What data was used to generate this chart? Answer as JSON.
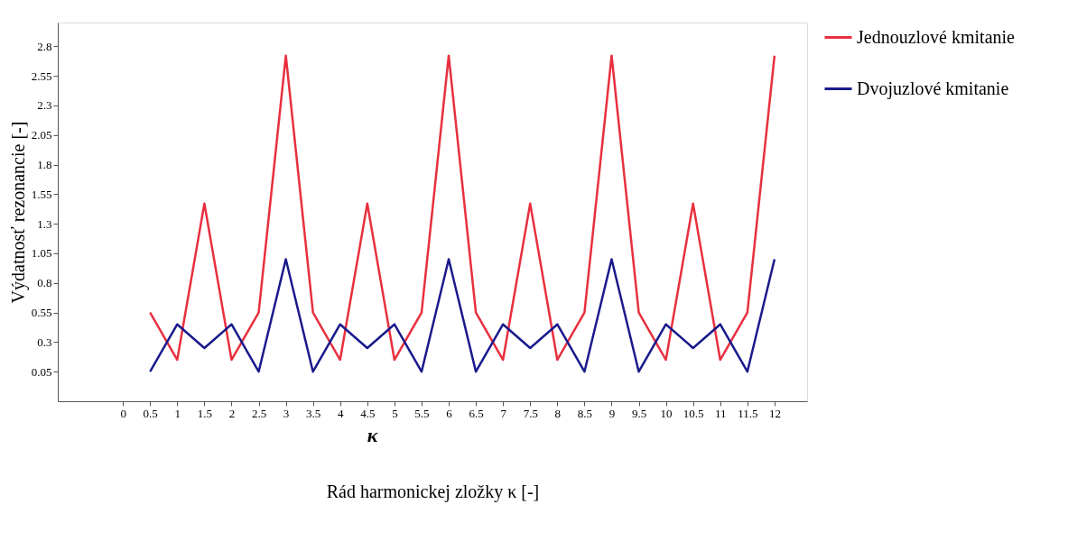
{
  "chart_data": {
    "type": "line",
    "xlabel": "Rád harmonickej zložky κ [-]",
    "ylabel": "Výdatnosť rezonancie [-]",
    "annotations": [
      "κ"
    ],
    "x": [
      0.5,
      1,
      1.5,
      2,
      2.5,
      3,
      3.5,
      4,
      4.5,
      5,
      5.5,
      6,
      6.5,
      7,
      7.5,
      8,
      8.5,
      9,
      9.5,
      10,
      10.5,
      11,
      11.5,
      12
    ],
    "series": [
      {
        "name": "Jednouzlové kmitanie",
        "color": "#e8303f",
        "values": [
          0.55,
          0.15,
          1.47,
          0.15,
          0.55,
          2.72,
          0.55,
          0.15,
          1.47,
          0.15,
          0.55,
          2.72,
          0.55,
          0.15,
          1.47,
          0.15,
          0.55,
          2.72,
          0.55,
          0.15,
          1.47,
          0.15,
          0.55,
          2.72
        ]
      },
      {
        "name": "Dvojuzlové kmitanie",
        "color": "#1a1a8c",
        "values": [
          0.05,
          0.45,
          0.25,
          0.45,
          0.05,
          1.0,
          0.05,
          0.45,
          0.25,
          0.45,
          0.05,
          1.0,
          0.05,
          0.45,
          0.25,
          0.45,
          0.05,
          1.0,
          0.05,
          0.45,
          0.25,
          0.45,
          0.05,
          1.0
        ]
      }
    ],
    "xlim": [
      -1.2,
      12.6
    ],
    "xticks": [
      0,
      0.5,
      1,
      1.5,
      2,
      2.5,
      3,
      3.5,
      4,
      4.5,
      5,
      5.5,
      6,
      6.5,
      7,
      7.5,
      8,
      8.5,
      9,
      9.5,
      10,
      10.5,
      11,
      11.5,
      12
    ],
    "ylim": [
      -0.2,
      3.0
    ],
    "yticks": [
      0.05,
      0.3,
      0.55,
      0.8,
      1.05,
      1.3,
      1.55,
      1.8,
      2.05,
      2.3,
      2.55,
      2.8
    ],
    "grid": false,
    "legend": "right",
    "marker": "none",
    "line_style": "solid"
  }
}
